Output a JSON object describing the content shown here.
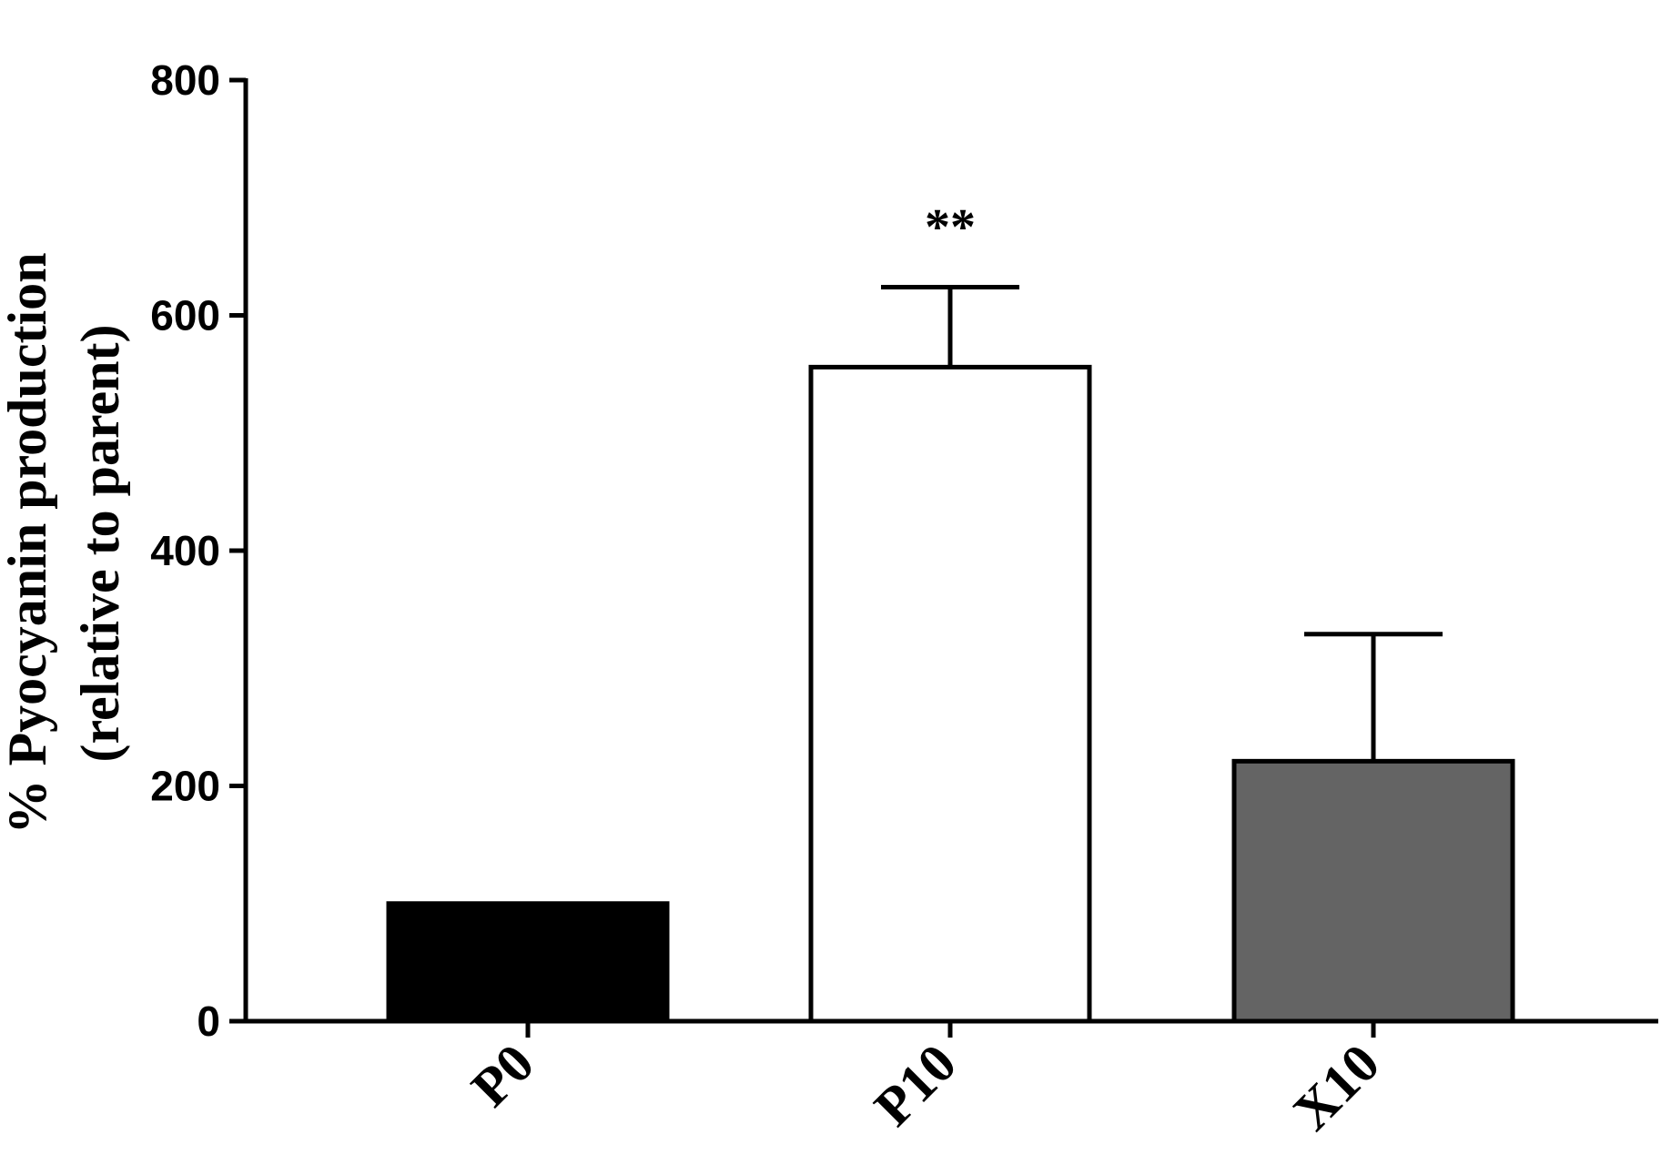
{
  "chart_data": {
    "type": "bar",
    "categories": [
      "P0",
      "P10",
      "X10"
    ],
    "values": [
      100,
      556,
      221
    ],
    "error_upper": [
      100,
      624,
      329
    ],
    "colors": [
      "#000000",
      "#ffffff",
      "#646464"
    ],
    "annotations": [
      {
        "category": "P10",
        "text": "**"
      }
    ],
    "ylabel_line1": "% Pyocyanin production",
    "ylabel_line2": "(relative to parent)",
    "ylim": [
      0,
      800
    ],
    "yticks": [
      0,
      200,
      400,
      600,
      800
    ],
    "ytick_labels": [
      "0",
      "200",
      "400",
      "600",
      "800"
    ],
    "grid": false,
    "legend": "none"
  }
}
